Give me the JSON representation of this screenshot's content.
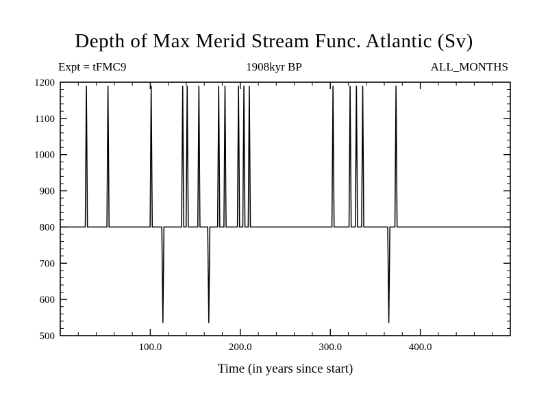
{
  "title": "Depth of Max Merid Stream Func. Atlantic (Sv)",
  "annotations": {
    "experiment": "Expt = tFMC9",
    "time_bp": "1908kyr BP",
    "months": "ALL_MONTHS"
  },
  "chart_data": {
    "type": "line",
    "title": "Depth of Max Merid Stream Func. Atlantic (Sv)",
    "xlabel": "Time (in years since start)",
    "ylabel": "",
    "xlim": [
      0,
      500
    ],
    "ylim": [
      500,
      1200
    ],
    "x_major_ticks": [
      100,
      200,
      300,
      400
    ],
    "x_tick_labels": [
      "100.0",
      "200.0",
      "300.0",
      "400.0"
    ],
    "x_minor_step": 20,
    "y_major_ticks": [
      500,
      600,
      700,
      800,
      900,
      1000,
      1100,
      1200
    ],
    "y_tick_labels": [
      "500",
      "600",
      "700",
      "800",
      "900",
      "1000",
      "1100",
      "1200"
    ],
    "y_minor_step": 20,
    "grid": false,
    "legend": "none",
    "line_color": "#000000",
    "baseline_value": 800,
    "spike_peak_value": 1190,
    "spike_trough_value": 535,
    "spikes": [
      {
        "t": 29,
        "v": 1190
      },
      {
        "t": 53,
        "v": 1190
      },
      {
        "t": 101,
        "v": 1190
      },
      {
        "t": 114,
        "v": 535
      },
      {
        "t": 136,
        "v": 1190
      },
      {
        "t": 141,
        "v": 1190
      },
      {
        "t": 154,
        "v": 1190
      },
      {
        "t": 165,
        "v": 535
      },
      {
        "t": 176,
        "v": 1190
      },
      {
        "t": 183,
        "v": 1190
      },
      {
        "t": 198,
        "v": 1190
      },
      {
        "t": 204,
        "v": 1190
      },
      {
        "t": 210,
        "v": 1190
      },
      {
        "t": 303,
        "v": 1190
      },
      {
        "t": 322,
        "v": 1190
      },
      {
        "t": 329,
        "v": 1190
      },
      {
        "t": 336,
        "v": 1190
      },
      {
        "t": 365,
        "v": 535
      },
      {
        "t": 373,
        "v": 1190
      }
    ]
  }
}
